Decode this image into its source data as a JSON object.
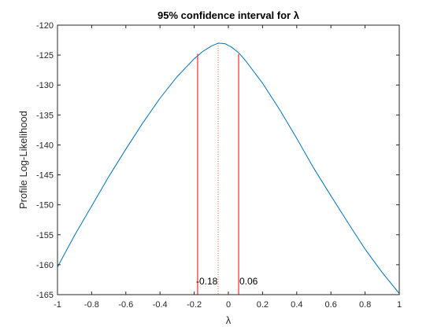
{
  "chart_data": {
    "type": "line",
    "title": "95% confidence interval for λ",
    "xlabel": "λ",
    "ylabel": "Profile Log-Likelihood",
    "xlim": [
      -1,
      1
    ],
    "ylim": [
      -165,
      -120
    ],
    "xticks": [
      "-1",
      "-0.8",
      "-0.6",
      "-0.4",
      "-0.2",
      "0",
      "0.2",
      "0.4",
      "0.6",
      "0.8",
      "1"
    ],
    "yticks": [
      "-120",
      "-125",
      "-130",
      "-135",
      "-140",
      "-145",
      "-150",
      "-155",
      "-160",
      "-165"
    ],
    "grid": false,
    "series": [
      {
        "color": "#0072BD",
        "x": [
          -1,
          -0.9,
          -0.8,
          -0.7,
          -0.6,
          -0.5,
          -0.4,
          -0.3,
          -0.2,
          -0.15,
          -0.1,
          -0.06,
          -0.02,
          0.02,
          0.06,
          0.1,
          0.2,
          0.3,
          0.4,
          0.5,
          0.6,
          0.7,
          0.8,
          0.9,
          1
        ],
        "y": [
          -160.4,
          -155.1,
          -150.2,
          -145.3,
          -140.7,
          -136.3,
          -132.2,
          -128.6,
          -125.6,
          -124.4,
          -123.5,
          -123.0,
          -123.1,
          -123.7,
          -124.6,
          -125.9,
          -129.7,
          -134.1,
          -138.9,
          -143.9,
          -148.5,
          -153.0,
          -157.4,
          -161.3,
          -164.8
        ]
      }
    ],
    "ci_lines": {
      "color": "#FF0000",
      "lower": {
        "x": -0.18,
        "ytop": -124.8,
        "label": "-0.18"
      },
      "upper": {
        "x": 0.06,
        "ytop": -124.8,
        "label": "0.06"
      }
    },
    "mle_line": {
      "x": -0.06,
      "ytop": -123.0,
      "color": "#D95319"
    }
  }
}
